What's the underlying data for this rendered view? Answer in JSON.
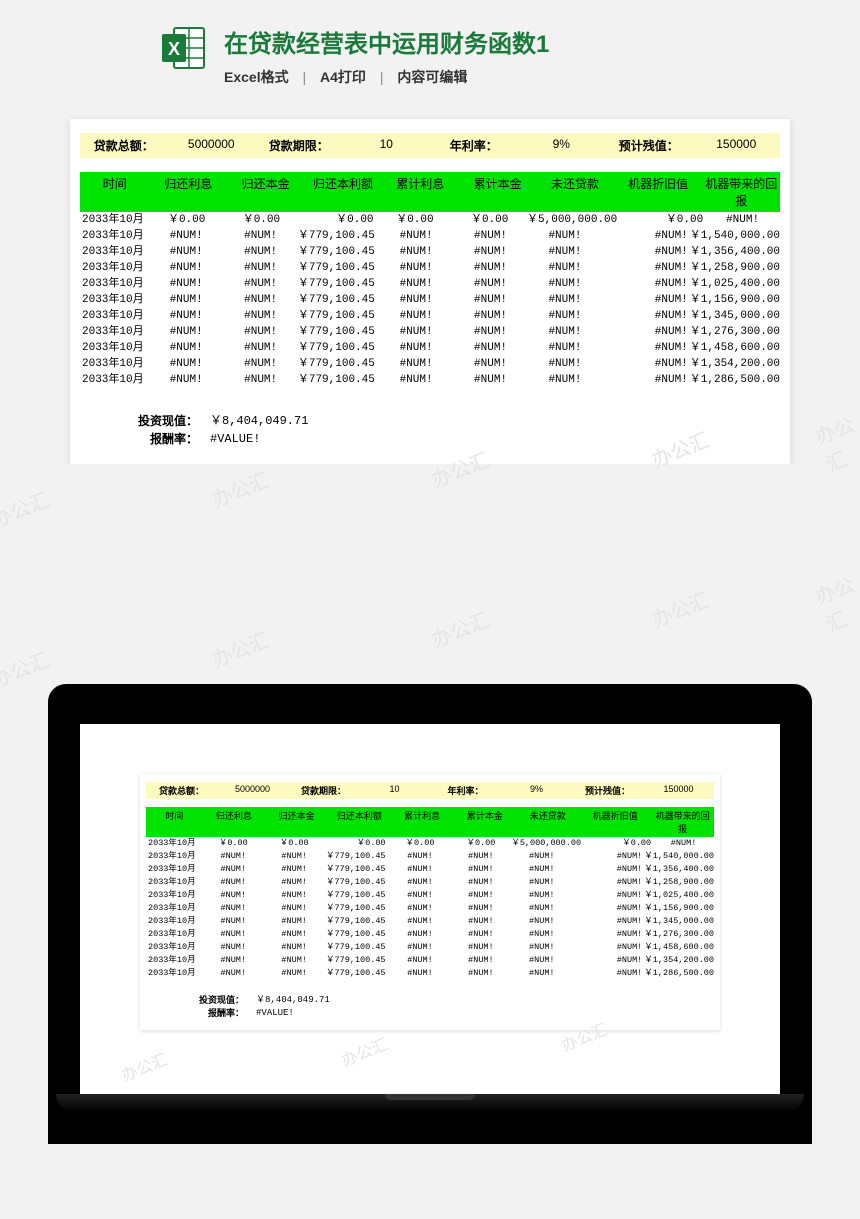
{
  "header": {
    "title": "在贷款经营表中运用财务函数1",
    "meta": [
      "Excel格式",
      "A4打印",
      "内容可编辑"
    ]
  },
  "params": {
    "items": [
      {
        "label": "贷款总额：",
        "value": "5000000"
      },
      {
        "label": "贷款期限：",
        "value": "10"
      },
      {
        "label": "年利率：",
        "value": "9%"
      },
      {
        "label": "预计残值：",
        "value": "150000"
      }
    ]
  },
  "columns": [
    "时间",
    "归还利息",
    "归还本金",
    "归还本利额",
    "累计利息",
    "累计本金",
    "未还贷款",
    "机器折旧值",
    "机器带来的回报"
  ],
  "rows": [
    {
      "c0": "2033年10月",
      "c1": "￥0.00",
      "c2": "￥0.00",
      "c3": "￥0.00",
      "c4": "￥0.00",
      "c5": "￥0.00",
      "c6": "￥5,000,000.00",
      "c7": "￥0.00",
      "c8": "#NUM!"
    },
    {
      "c0": "2033年10月",
      "c1": "#NUM!",
      "c2": "#NUM!",
      "c3": "￥779,100.45",
      "c4": "#NUM!",
      "c5": "#NUM!",
      "c6": "#NUM!",
      "c7": "#NUM!",
      "c8": "￥1,540,000.00"
    },
    {
      "c0": "2033年10月",
      "c1": "#NUM!",
      "c2": "#NUM!",
      "c3": "￥779,100.45",
      "c4": "#NUM!",
      "c5": "#NUM!",
      "c6": "#NUM!",
      "c7": "#NUM!",
      "c8": "￥1,356,400.00"
    },
    {
      "c0": "2033年10月",
      "c1": "#NUM!",
      "c2": "#NUM!",
      "c3": "￥779,100.45",
      "c4": "#NUM!",
      "c5": "#NUM!",
      "c6": "#NUM!",
      "c7": "#NUM!",
      "c8": "￥1,258,900.00"
    },
    {
      "c0": "2033年10月",
      "c1": "#NUM!",
      "c2": "#NUM!",
      "c3": "￥779,100.45",
      "c4": "#NUM!",
      "c5": "#NUM!",
      "c6": "#NUM!",
      "c7": "#NUM!",
      "c8": "￥1,025,400.00"
    },
    {
      "c0": "2033年10月",
      "c1": "#NUM!",
      "c2": "#NUM!",
      "c3": "￥779,100.45",
      "c4": "#NUM!",
      "c5": "#NUM!",
      "c6": "#NUM!",
      "c7": "#NUM!",
      "c8": "￥1,156,900.00"
    },
    {
      "c0": "2033年10月",
      "c1": "#NUM!",
      "c2": "#NUM!",
      "c3": "￥779,100.45",
      "c4": "#NUM!",
      "c5": "#NUM!",
      "c6": "#NUM!",
      "c7": "#NUM!",
      "c8": "￥1,345,000.00"
    },
    {
      "c0": "2033年10月",
      "c1": "#NUM!",
      "c2": "#NUM!",
      "c3": "￥779,100.45",
      "c4": "#NUM!",
      "c5": "#NUM!",
      "c6": "#NUM!",
      "c7": "#NUM!",
      "c8": "￥1,276,300.00"
    },
    {
      "c0": "2033年10月",
      "c1": "#NUM!",
      "c2": "#NUM!",
      "c3": "￥779,100.45",
      "c4": "#NUM!",
      "c5": "#NUM!",
      "c6": "#NUM!",
      "c7": "#NUM!",
      "c8": "￥1,458,600.00"
    },
    {
      "c0": "2033年10月",
      "c1": "#NUM!",
      "c2": "#NUM!",
      "c3": "￥779,100.45",
      "c4": "#NUM!",
      "c5": "#NUM!",
      "c6": "#NUM!",
      "c7": "#NUM!",
      "c8": "￥1,354,200.00"
    },
    {
      "c0": "2033年10月",
      "c1": "#NUM!",
      "c2": "#NUM!",
      "c3": "￥779,100.45",
      "c4": "#NUM!",
      "c5": "#NUM!",
      "c6": "#NUM!",
      "c7": "#NUM!",
      "c8": "￥1,286,500.00"
    }
  ],
  "summary": [
    {
      "label": "投资现值：",
      "value": "￥8,404,049.71"
    },
    {
      "label": "报酬率：",
      "value": "#VALUE!"
    }
  ],
  "watermark": "办公汇",
  "colors": {
    "accent": "#1a7a3a",
    "param_bg": "#fcfabf",
    "hdr_bg": "#00e200",
    "page_bg": "#f2f2f2"
  }
}
